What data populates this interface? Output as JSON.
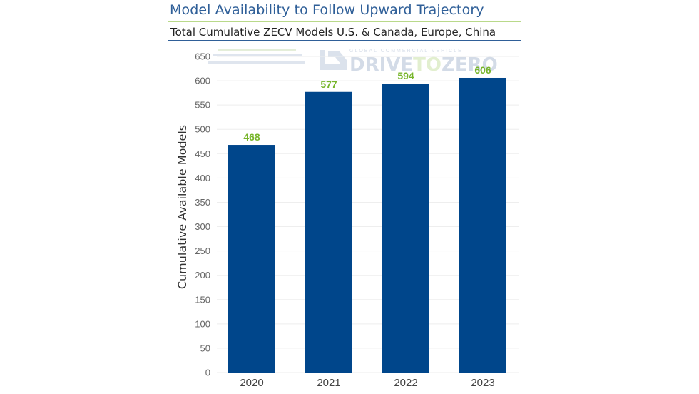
{
  "header": {
    "title": "Model Availability to Follow Upward Trajectory",
    "subtitle": "Total Cumulative ZECV Models U.S. & Canada, Europe, China"
  },
  "watermark": {
    "tagline": "GLOBAL COMMERCIAL VEHICLE",
    "brand_part1": "DRIVE",
    "brand_part2": "TO",
    "brand_part3": "ZERO"
  },
  "colors": {
    "bar": "#00468b",
    "data_label": "#77b52b",
    "title": "#2f5f98",
    "grid": "#eeeeee"
  },
  "chart_data": {
    "type": "bar",
    "title": "Model Availability to Follow Upward Trajectory",
    "subtitle": "Total Cumulative ZECV Models U.S. & Canada, Europe, China",
    "xlabel": "",
    "ylabel": "Cumulative Available Models",
    "categories": [
      "2020",
      "2021",
      "2022",
      "2023"
    ],
    "values": [
      468,
      577,
      594,
      606
    ],
    "data_labels": [
      "468",
      "577",
      "594",
      "606"
    ],
    "ylim": [
      0,
      650
    ],
    "yticks": [
      0,
      50,
      100,
      150,
      200,
      250,
      300,
      350,
      400,
      450,
      500,
      550,
      600,
      650
    ],
    "grid": true,
    "legend": "none"
  }
}
